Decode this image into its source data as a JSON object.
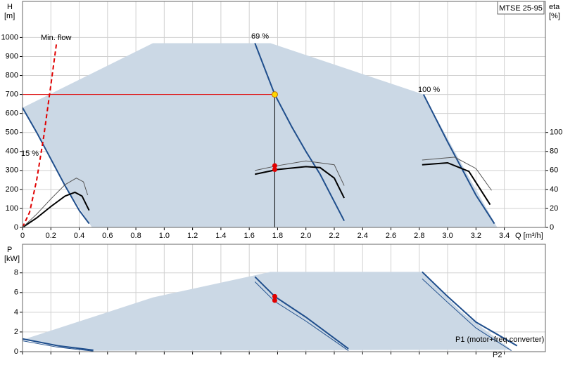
{
  "chart_data": [
    {
      "type": "line",
      "title": "MTSE 25-95",
      "y_label": "H",
      "y_unit": "[m]",
      "y2_label": "eta",
      "y2_unit": "[%]",
      "x_label": "Q [m³/h]",
      "xlim": [
        0,
        3.69
      ],
      "ylim": [
        0,
        1190
      ],
      "y2lim": [
        0,
        238
      ],
      "xticks": [
        0,
        0.2,
        0.4,
        0.6,
        0.8,
        {
          "value": 1,
          "label": "1.0"
        },
        1.2,
        1.4,
        1.6,
        1.8,
        {
          "value": 2,
          "label": "2.0"
        },
        2.2,
        2.4,
        2.6,
        2.8,
        {
          "value": 3,
          "label": "3.0"
        },
        3.2,
        3.4
      ],
      "yticks": [
        0,
        100,
        200,
        300,
        400,
        500,
        600,
        700,
        800,
        900,
        1000
      ],
      "y2ticks": [
        0,
        20,
        40,
        60,
        80,
        100
      ],
      "grid": true,
      "annotations": {
        "min_flow": "Min. flow",
        "eff15": "15 %",
        "eff69": "69 %",
        "eff100": "100 %"
      },
      "series": [
        {
          "kind": "area",
          "color": "#cbd8e5",
          "x": [
            0,
            0.92,
            1.75,
            2.83,
            3.05,
            3.35,
            0.49,
            0.3,
            0.15
          ],
          "values": [
            630,
            970,
            970,
            700,
            400,
            0,
            0,
            220,
            430
          ]
        },
        {
          "color": "#1f4e8c",
          "x": [
            0,
            0.1,
            0.2,
            0.3,
            0.4,
            0.47
          ],
          "values": [
            630,
            500,
            360,
            220,
            90,
            20
          ]
        },
        {
          "color": "#1f4e8c",
          "x": [
            1.64,
            1.78,
            1.9,
            2.0,
            2.1,
            2.27
          ],
          "values": [
            970,
            700,
            530,
            400,
            280,
            35
          ]
        },
        {
          "color": "#1f4e8c",
          "x": [
            2.83,
            3.0,
            3.2,
            3.33
          ],
          "values": [
            700,
            450,
            170,
            20
          ]
        },
        {
          "color": "#e00000",
          "dashed": true,
          "x": [
            0,
            0.05,
            0.1,
            0.15,
            0.2,
            0.24
          ],
          "values": [
            0,
            80,
            250,
            480,
            750,
            970
          ]
        },
        {
          "color": "#000000",
          "axis": "y2",
          "x": [
            0,
            0.1,
            0.2,
            0.3,
            0.37,
            0.42,
            0.47
          ],
          "values": [
            0,
            10,
            22,
            33,
            37,
            33,
            18
          ]
        },
        {
          "color": "#555555",
          "thin": true,
          "axis": "y2",
          "x": [
            0,
            0.1,
            0.2,
            0.3,
            0.38,
            0.43,
            0.46
          ],
          "values": [
            0,
            14,
            30,
            45,
            52,
            48,
            34
          ]
        },
        {
          "color": "#000000",
          "axis": "y2",
          "x": [
            1.64,
            1.8,
            2.0,
            2.1,
            2.2,
            2.27
          ],
          "values": [
            56,
            61,
            64,
            63,
            52,
            31
          ]
        },
        {
          "color": "#555555",
          "thin": true,
          "axis": "y2",
          "x": [
            1.64,
            1.8,
            2.0,
            2.2,
            2.27
          ],
          "values": [
            60,
            65,
            70,
            66,
            44
          ]
        },
        {
          "color": "#000000",
          "axis": "y2",
          "x": [
            2.82,
            3.0,
            3.15,
            3.3
          ],
          "values": [
            66,
            68,
            59,
            24
          ]
        },
        {
          "color": "#555555",
          "thin": true,
          "axis": "y2",
          "x": [
            2.82,
            3.05,
            3.2,
            3.31
          ],
          "values": [
            71,
            74,
            62,
            39
          ]
        }
      ],
      "duty_point": {
        "x": 1.78,
        "y": 700
      },
      "operating_points": {
        "axis": "y2",
        "color": "#e00000",
        "x": [
          1.78,
          1.78
        ],
        "values": [
          65,
          61
        ]
      }
    },
    {
      "type": "line",
      "y_label": "P",
      "y_unit": "[kW]",
      "xlim": [
        0,
        3.69
      ],
      "ylim": [
        0,
        10.9
      ],
      "xticks": [
        0,
        0.2,
        0.4,
        0.6,
        0.8,
        1,
        1.2,
        1.4,
        1.6,
        1.8,
        2,
        2.2,
        2.4,
        2.6,
        2.8,
        3,
        3.2,
        3.4
      ],
      "xtick_labels": false,
      "yticks": [
        0,
        2,
        4,
        6,
        8
      ],
      "grid": true,
      "annotations": {
        "p1": "P1 (motor+freq.converter)",
        "p2": "P2"
      },
      "series": [
        {
          "kind": "area",
          "color": "#cbd8e5",
          "x": [
            0,
            0.92,
            1.75,
            2.82,
            3.1,
            3.45,
            0.5
          ],
          "values": [
            1.2,
            5.5,
            8.1,
            8.1,
            4,
            0.2,
            0.1
          ]
        },
        {
          "color": "#1f4e8c",
          "x": [
            0,
            0.25,
            0.5
          ],
          "values": [
            1.3,
            0.6,
            0.15
          ]
        },
        {
          "color": "#1f4e8c",
          "thin": true,
          "x": [
            0,
            0.25,
            0.5
          ],
          "values": [
            1.1,
            0.45,
            0.05
          ]
        },
        {
          "color": "#1f4e8c",
          "x": [
            1.64,
            1.78,
            2.0,
            2.3
          ],
          "values": [
            7.6,
            5.6,
            3.5,
            0.3
          ]
        },
        {
          "color": "#1f4e8c",
          "thin": true,
          "x": [
            1.64,
            1.78,
            2.0,
            2.3
          ],
          "values": [
            7.1,
            5.1,
            3.1,
            0.1
          ]
        },
        {
          "color": "#1f4e8c",
          "x": [
            2.82,
            3.0,
            3.2,
            3.49
          ],
          "values": [
            8.1,
            5.6,
            3.0,
            0.6
          ]
        },
        {
          "color": "#1f4e8c",
          "thin": true,
          "x": [
            2.82,
            3.0,
            3.2,
            3.45
          ],
          "values": [
            7.4,
            5.0,
            2.4,
            0.1
          ]
        }
      ],
      "operating_points": {
        "color": "#e00000",
        "x": [
          1.78,
          1.78
        ],
        "values": [
          5.6,
          5.2
        ]
      }
    }
  ]
}
